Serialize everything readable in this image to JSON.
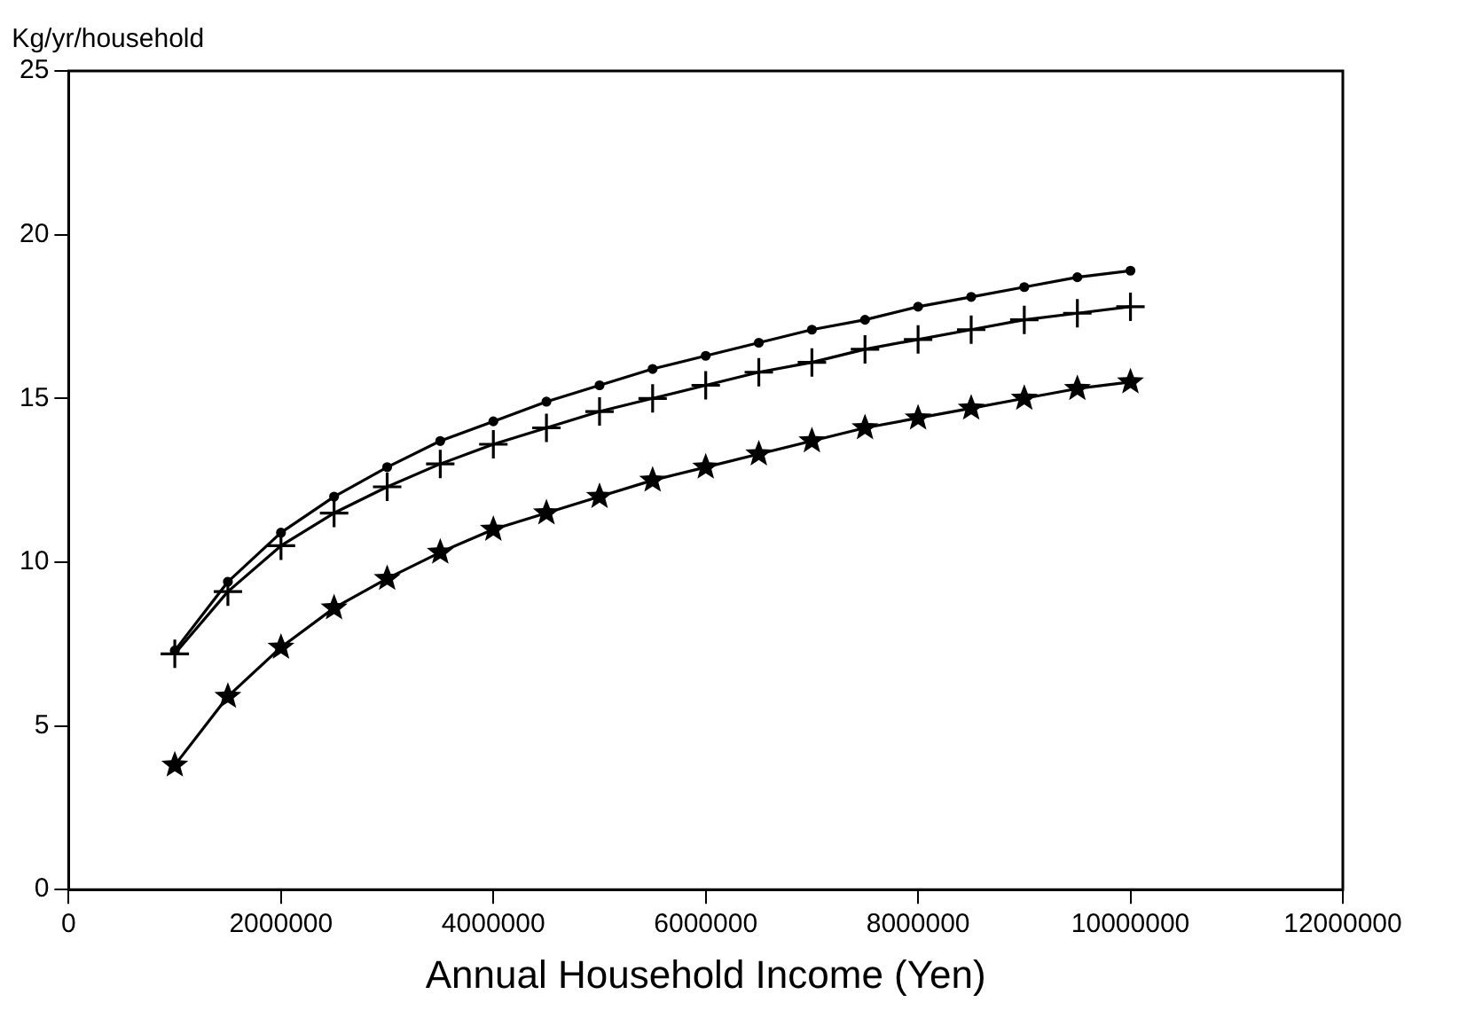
{
  "chart_data": {
    "type": "line",
    "xlabel": "Annual Household Income (Yen)",
    "ylabel": "Kg/yr/household",
    "x": [
      1000000,
      1500000,
      2000000,
      2500000,
      3000000,
      3500000,
      4000000,
      4500000,
      5000000,
      5500000,
      6000000,
      6500000,
      7000000,
      7500000,
      8000000,
      8500000,
      9000000,
      9500000,
      10000000
    ],
    "series": [
      {
        "color": "#000000",
        "marker": "circle",
        "values": [
          7.3,
          9.4,
          10.9,
          12.0,
          12.9,
          13.7,
          14.3,
          14.9,
          15.4,
          15.9,
          16.3,
          16.7,
          17.1,
          17.4,
          17.8,
          18.1,
          18.4,
          18.7,
          18.9
        ]
      },
      {
        "color": "#000000",
        "marker": "cross",
        "values": [
          7.2,
          9.1,
          10.5,
          11.5,
          12.3,
          13.0,
          13.6,
          14.1,
          14.6,
          15.0,
          15.4,
          15.8,
          16.1,
          16.5,
          16.8,
          17.1,
          17.4,
          17.6,
          17.8
        ]
      },
      {
        "color": "#000000",
        "marker": "star",
        "values": [
          3.8,
          5.9,
          7.4,
          8.6,
          9.5,
          10.3,
          11.0,
          11.5,
          12.0,
          12.5,
          12.9,
          13.3,
          13.7,
          14.1,
          14.4,
          14.7,
          15.0,
          15.3,
          15.5
        ]
      }
    ],
    "xlim": [
      0,
      12000000
    ],
    "xticks": [
      0,
      2000000,
      4000000,
      6000000,
      8000000,
      10000000,
      12000000
    ],
    "ylim": [
      0,
      25
    ],
    "yticks": [
      0,
      5,
      10,
      15,
      20,
      25
    ],
    "grid": false,
    "legend": false,
    "line_style": "solid"
  }
}
